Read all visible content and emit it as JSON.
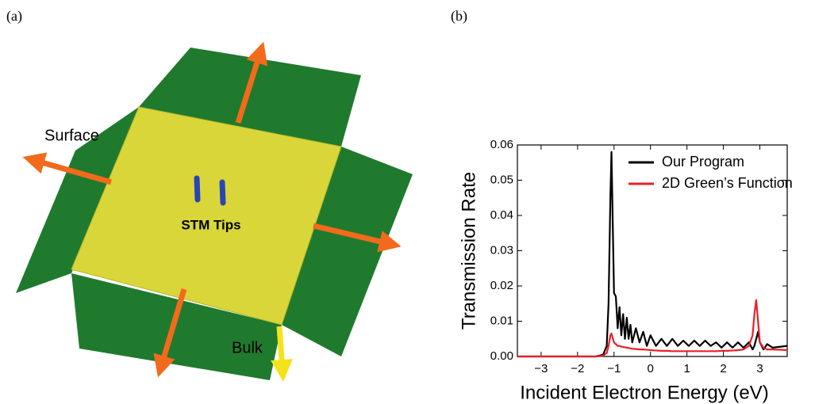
{
  "panel_a": {
    "label": "(a)",
    "surface_label": "Surface",
    "tips_label": "STM Tips",
    "bulk_label": "Bulk"
  },
  "panel_b_label": "(b)",
  "chart_data": {
    "type": "line",
    "xlabel": "Incident Electron Energy (eV)",
    "ylabel": "Transmission Rate",
    "xlim": [
      -3.65,
      3.75
    ],
    "ylim": [
      0,
      0.06
    ],
    "xticks": [
      {
        "value": -3,
        "label": "−3"
      },
      {
        "value": -2,
        "label": "−2"
      },
      {
        "value": -1,
        "label": "−1"
      },
      0,
      1,
      2,
      3
    ],
    "yticks": [
      {
        "value": 0,
        "label": "0.00"
      },
      {
        "value": 0.01,
        "label": "0.01"
      },
      {
        "value": 0.02,
        "label": "0.02"
      },
      {
        "value": 0.03,
        "label": "0.03"
      },
      {
        "value": 0.04,
        "label": "0.04"
      },
      {
        "value": 0.05,
        "label": "0.05"
      },
      {
        "value": 0.06,
        "label": "0.06"
      }
    ],
    "legend": "upper right",
    "x": [
      -3.65,
      -3,
      -2,
      -1.5,
      -1.3,
      -1.2,
      -1.15,
      -1.1,
      -1.07,
      -1.03,
      -1.0,
      -0.95,
      -0.9,
      -0.85,
      -0.8,
      -0.75,
      -0.7,
      -0.65,
      -0.6,
      -0.55,
      -0.5,
      -0.4,
      -0.3,
      -0.2,
      -0.1,
      0,
      0.15,
      0.3,
      0.45,
      0.6,
      0.75,
      0.9,
      1.05,
      1.2,
      1.35,
      1.5,
      1.65,
      1.8,
      1.95,
      2.1,
      2.25,
      2.4,
      2.55,
      2.7,
      2.8,
      2.85,
      2.9,
      2.95,
      3.0,
      3.1,
      3.2,
      3.35,
      3.75
    ],
    "series": [
      {
        "name": "Our Program",
        "color": "#000000",
        "values": [
          0,
          0,
          0,
          0,
          0.0005,
          0.003,
          0.015,
          0.045,
          0.058,
          0.035,
          0.018,
          0.017,
          0.008,
          0.014,
          0.006,
          0.012,
          0.005,
          0.011,
          0.005,
          0.009,
          0.004,
          0.008,
          0.004,
          0.007,
          0.003,
          0.006,
          0.003,
          0.005,
          0.003,
          0.005,
          0.003,
          0.0045,
          0.003,
          0.0045,
          0.003,
          0.0045,
          0.003,
          0.004,
          0.0025,
          0.004,
          0.0025,
          0.004,
          0.0025,
          0.004,
          0.002,
          0.003,
          0.005,
          0.007,
          0.004,
          0.002,
          0.0035,
          0.0025,
          0.003
        ]
      },
      {
        "name": "2D Green’s Function",
        "color": "#e8202a",
        "values": [
          0,
          0,
          0,
          0,
          0.0002,
          0.001,
          0.003,
          0.006,
          0.0065,
          0.005,
          0.004,
          0.0035,
          0.003,
          0.003,
          0.0028,
          0.0027,
          0.0026,
          0.0025,
          0.0024,
          0.0023,
          0.0022,
          0.0021,
          0.002,
          0.002,
          0.0019,
          0.0018,
          0.0017,
          0.0016,
          0.0016,
          0.0015,
          0.0015,
          0.0015,
          0.0015,
          0.0015,
          0.0015,
          0.0015,
          0.0015,
          0.0015,
          0.0016,
          0.0016,
          0.0017,
          0.0018,
          0.002,
          0.003,
          0.006,
          0.012,
          0.016,
          0.01,
          0.004,
          0.0025,
          0.002,
          0.002,
          0.0018
        ]
      }
    ]
  }
}
